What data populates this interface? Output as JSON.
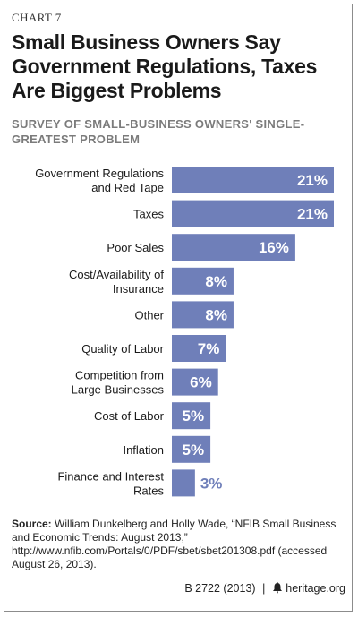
{
  "header": {
    "chart_label": "CHART 7",
    "title": "Small Business Owners Say Government Regulations, Taxes Are Biggest Problems",
    "subtitle": "SURVEY OF SMALL-BUSINESS OWNERS' SINGLE-GREATEST PROBLEM"
  },
  "chart_data": {
    "type": "bar",
    "orientation": "horizontal",
    "categories": [
      [
        "Government Regulations",
        "and Red Tape"
      ],
      [
        "Taxes"
      ],
      [
        "Poor Sales"
      ],
      [
        "Cost/Availability of",
        "Insurance"
      ],
      [
        "Other"
      ],
      [
        "Quality of Labor"
      ],
      [
        "Competition from",
        "Large Businesses"
      ],
      [
        "Cost of Labor"
      ],
      [
        "Inflation"
      ],
      [
        "Finance and Interest",
        "Rates"
      ]
    ],
    "values": [
      21,
      21,
      16,
      8,
      8,
      7,
      6,
      5,
      5,
      3
    ],
    "value_labels": [
      "21%",
      "21%",
      "16%",
      "8%",
      "8%",
      "7%",
      "6%",
      "5%",
      "5%",
      "3%"
    ],
    "unit": "%",
    "bar_color": "#6f7fb9",
    "label_inside_color": "#ffffff",
    "label_outside_color": "#6f7fb9",
    "xlim": [
      0,
      21
    ],
    "grid": false,
    "legend": "none"
  },
  "source": {
    "label": "Source:",
    "text": "William Dunkelberg and Holly Wade, “NFIB Small Business and Economic Trends: August 2013,” http://www.nfib.com/Portals/0/PDF/sbet/sbet201308.pdf (accessed August 26, 2013)."
  },
  "footer": {
    "code": "B 2722 (2013)",
    "site": "heritage.org"
  }
}
